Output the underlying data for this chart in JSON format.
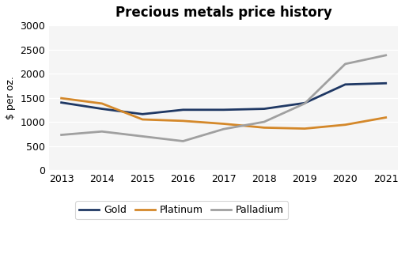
{
  "title": "Precious metals price history",
  "ylabel": "$ per oz.",
  "years": [
    2013,
    2014,
    2015,
    2016,
    2017,
    2018,
    2019,
    2020,
    2021
  ],
  "gold": [
    1400,
    1270,
    1160,
    1250,
    1250,
    1270,
    1390,
    1775,
    1800
  ],
  "platinum": [
    1490,
    1380,
    1050,
    1020,
    960,
    880,
    860,
    940,
    1090
  ],
  "palladium": [
    730,
    800,
    700,
    600,
    850,
    1000,
    1380,
    2200,
    2380
  ],
  "gold_color": "#1f3864",
  "platinum_color": "#d4882a",
  "palladium_color": "#a0a0a0",
  "ylim": [
    0,
    3000
  ],
  "yticks": [
    0,
    500,
    1000,
    1500,
    2000,
    2500,
    3000
  ],
  "bg_color": "#ffffff",
  "plot_bg_color": "#f5f5f5",
  "legend_labels": [
    "Gold",
    "Platinum",
    "Palladium"
  ],
  "linewidth": 2.0,
  "title_fontsize": 12,
  "axis_fontsize": 9,
  "ylabel_fontsize": 9
}
